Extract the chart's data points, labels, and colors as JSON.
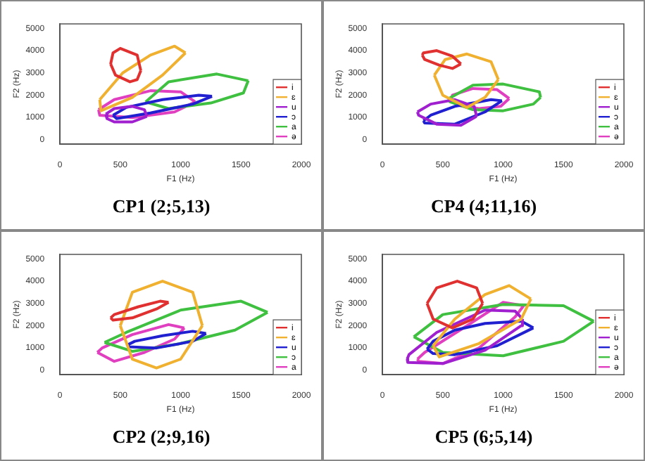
{
  "chart_data": [
    {
      "type": "line",
      "title": "CP1 (2;5,13)",
      "xlabel": "F1 (Hz)",
      "ylabel": "F2 (Hz)",
      "xlim": [
        0,
        2000
      ],
      "ylim": [
        -200,
        5200
      ],
      "xticks": [
        0,
        500,
        1000,
        1500,
        2000
      ],
      "yticks": [
        0,
        1000,
        2000,
        3000,
        4000,
        5000
      ],
      "grid": false,
      "legend": "bottom right",
      "marker": "none",
      "line_style": "solid",
      "series": [
        {
          "name": "i",
          "color": "#e03030",
          "x": [
            420,
            440,
            500,
            640,
            670
          ],
          "values": [
            3400,
            3900,
            4100,
            3800,
            3100
          ]
        },
        {
          "color": "#e03030",
          "x": [
            420,
            460,
            580,
            640,
            670
          ],
          "values": [
            3400,
            2900,
            2600,
            2700,
            3100
          ]
        },
        {
          "name": "ɛ",
          "color": "#f0b030",
          "x": [
            330,
            520,
            750,
            950,
            1040
          ],
          "values": [
            1800,
            3000,
            3800,
            4200,
            3900
          ]
        },
        {
          "color": "#f0b030",
          "x": [
            330,
            340,
            600,
            850,
            1040
          ],
          "values": [
            1800,
            1300,
            1900,
            2900,
            3900
          ]
        },
        {
          "name": "u",
          "color": "#a020d0",
          "x": [
            380,
            450,
            600,
            700,
            720
          ],
          "values": [
            1150,
            1400,
            1500,
            1350,
            1050
          ]
        },
        {
          "color": "#a020d0",
          "x": [
            380,
            390,
            450,
            600,
            720
          ],
          "values": [
            1150,
            950,
            800,
            800,
            1050
          ]
        },
        {
          "name": "ɔ",
          "color": "#2020d0",
          "x": [
            440,
            550,
            850,
            1150,
            1260
          ],
          "values": [
            1100,
            1450,
            1800,
            2000,
            1950
          ]
        },
        {
          "color": "#2020d0",
          "x": [
            440,
            470,
            750,
            1100,
            1260
          ],
          "values": [
            1100,
            950,
            1200,
            1600,
            1950
          ]
        },
        {
          "name": "a",
          "color": "#40c040",
          "x": [
            710,
            900,
            1300,
            1560
          ],
          "values": [
            1700,
            2600,
            2950,
            2650
          ]
        },
        {
          "color": "#40c040",
          "x": [
            710,
            900,
            1250,
            1520,
            1560
          ],
          "values": [
            1700,
            1400,
            1650,
            2100,
            2650
          ]
        },
        {
          "name": "ə",
          "color": "#e040c0",
          "x": [
            320,
            450,
            750,
            1000,
            1120
          ],
          "values": [
            1350,
            1800,
            2200,
            2150,
            1700
          ]
        },
        {
          "color": "#e040c0",
          "x": [
            320,
            330,
            600,
            950,
            1120
          ],
          "values": [
            1350,
            1100,
            1000,
            1250,
            1700
          ]
        }
      ]
    },
    {
      "type": "line",
      "title": "CP4 (4;11,16)",
      "xlabel": "F1 (Hz)",
      "ylabel": "F2 (Hz)",
      "xlim": [
        0,
        2000
      ],
      "ylim": [
        -200,
        5200
      ],
      "xticks": [
        0,
        500,
        1000,
        1500,
        2000
      ],
      "yticks": [
        0,
        1000,
        2000,
        3000,
        4000,
        5000
      ],
      "grid": false,
      "legend": "bottom right",
      "marker": "none",
      "line_style": "solid",
      "series": [
        {
          "name": "i",
          "color": "#e03030",
          "x": [
            330,
            340,
            450,
            580,
            650
          ],
          "values": [
            3800,
            3900,
            4000,
            3750,
            3400
          ]
        },
        {
          "color": "#e03030",
          "x": [
            330,
            350,
            470,
            580,
            650
          ],
          "values": [
            3800,
            3600,
            3350,
            3200,
            3400
          ]
        },
        {
          "name": "ɛ",
          "color": "#f0b030",
          "x": [
            430,
            520,
            700,
            900,
            960
          ],
          "values": [
            2900,
            3600,
            3850,
            3500,
            2700
          ]
        },
        {
          "color": "#f0b030",
          "x": [
            430,
            500,
            700,
            850,
            960
          ],
          "values": [
            2900,
            2000,
            1450,
            1900,
            2700
          ]
        },
        {
          "name": "u",
          "color": "#a020d0",
          "x": [
            290,
            400,
            600,
            760,
            780
          ],
          "values": [
            1250,
            1600,
            1800,
            1500,
            1050
          ]
        },
        {
          "color": "#a020d0",
          "x": [
            290,
            300,
            450,
            650,
            780
          ],
          "values": [
            1250,
            1100,
            700,
            650,
            1050
          ]
        },
        {
          "name": "ɔ",
          "color": "#2020d0",
          "x": [
            340,
            400,
            600,
            900,
            990
          ],
          "values": [
            850,
            1100,
            1500,
            1800,
            1750
          ]
        },
        {
          "color": "#2020d0",
          "x": [
            340,
            350,
            600,
            850,
            990
          ],
          "values": [
            850,
            750,
            700,
            1250,
            1750
          ]
        },
        {
          "name": "a",
          "color": "#40c040",
          "x": [
            550,
            750,
            1000,
            1300,
            1310
          ],
          "values": [
            1850,
            2450,
            2500,
            2150,
            1900
          ]
        },
        {
          "color": "#40c040",
          "x": [
            550,
            560,
            750,
            1000,
            1250,
            1310
          ],
          "values": [
            1850,
            1700,
            1350,
            1300,
            1600,
            1900
          ]
        },
        {
          "name": "ə",
          "color": "#e040c0",
          "x": [
            570,
            580,
            750,
            950,
            1050
          ],
          "values": [
            1800,
            2000,
            2300,
            2250,
            1850
          ]
        },
        {
          "color": "#e040c0",
          "x": [
            570,
            620,
            800,
            980,
            1050
          ],
          "values": [
            1800,
            1550,
            1400,
            1500,
            1850
          ]
        }
      ]
    },
    {
      "type": "line",
      "title": "CP2 (2;9,16)",
      "xlabel": "F1 (Hz)",
      "ylabel": "F2 (Hz)",
      "xlim": [
        0,
        2000
      ],
      "ylim": [
        -200,
        5200
      ],
      "xticks": [
        0,
        500,
        1000,
        1500,
        2000
      ],
      "yticks": [
        0,
        1000,
        2000,
        3000,
        4000,
        5000
      ],
      "grid": false,
      "legend": "bottom right",
      "marker": "none",
      "line_style": "solid",
      "series": [
        {
          "name": "i",
          "color": "#e03030",
          "x": [
            420,
            450,
            650,
            830,
            900
          ],
          "values": [
            2350,
            2500,
            2850,
            3100,
            3050
          ]
        },
        {
          "color": "#e03030",
          "x": [
            420,
            440,
            600,
            800,
            900
          ],
          "values": [
            2350,
            2250,
            2350,
            2750,
            3050
          ]
        },
        {
          "name": "ɛ",
          "color": "#f0b030",
          "x": [
            500,
            600,
            850,
            1100,
            1180
          ],
          "values": [
            2000,
            3500,
            4000,
            3500,
            2000
          ]
        },
        {
          "color": "#f0b030",
          "x": [
            500,
            600,
            800,
            1000,
            1180
          ],
          "values": [
            2000,
            500,
            100,
            500,
            2000
          ]
        },
        {
          "name": "u",
          "color": "#2020d0",
          "x": [
            565,
            620,
            850,
            1100,
            1210
          ],
          "values": [
            1150,
            1300,
            1550,
            1750,
            1650
          ]
        },
        {
          "color": "#2020d0",
          "x": [
            565,
            570,
            800,
            1100,
            1210
          ],
          "values": [
            1150,
            1050,
            1000,
            1300,
            1650
          ]
        },
        {
          "name": "ɔ",
          "color": "#40c040",
          "x": [
            370,
            550,
            1000,
            1500,
            1720
          ],
          "values": [
            1250,
            1700,
            2700,
            3100,
            2600
          ]
        },
        {
          "color": "#40c040",
          "x": [
            370,
            600,
            1000,
            1450,
            1720
          ],
          "values": [
            1250,
            850,
            1200,
            1800,
            2600
          ]
        },
        {
          "name": "a",
          "color": "#e040c0",
          "x": [
            310,
            350,
            600,
            900,
            1030
          ],
          "values": [
            800,
            1000,
            1600,
            2050,
            1900
          ]
        },
        {
          "color": "#e040c0",
          "x": [
            310,
            450,
            700,
            950,
            1030
          ],
          "values": [
            800,
            400,
            800,
            1400,
            1900
          ]
        }
      ]
    },
    {
      "type": "line",
      "title": "CP5 (6;5,14)",
      "xlabel": "F1 (Hz)",
      "ylabel": "F2 (Hz)",
      "xlim": [
        0,
        2000
      ],
      "ylim": [
        -200,
        5200
      ],
      "xticks": [
        0,
        500,
        1000,
        1500,
        2000
      ],
      "yticks": [
        0,
        1000,
        2000,
        3000,
        4000,
        5000
      ],
      "grid": false,
      "legend": "bottom right",
      "marker": "none",
      "line_style": "solid",
      "series": [
        {
          "name": "i",
          "color": "#e03030",
          "x": [
            370,
            450,
            620,
            780,
            830
          ],
          "values": [
            3000,
            3700,
            4000,
            3700,
            3000
          ]
        },
        {
          "color": "#e03030",
          "x": [
            370,
            420,
            580,
            750,
            830
          ],
          "values": [
            3000,
            2300,
            1900,
            2300,
            3000
          ]
        },
        {
          "name": "ɛ",
          "color": "#f0b030",
          "x": [
            420,
            600,
            850,
            1050,
            1230
          ],
          "values": [
            1100,
            2300,
            3400,
            3800,
            3200
          ]
        },
        {
          "color": "#f0b030",
          "x": [
            420,
            470,
            800,
            1150,
            1230
          ],
          "values": [
            1100,
            600,
            1200,
            2300,
            3200
          ]
        },
        {
          "name": "u",
          "color": "#a020d0",
          "x": [
            205,
            220,
            450,
            850,
            1100,
            1160
          ],
          "values": [
            500,
            700,
            1700,
            2700,
            2650,
            2300
          ]
        },
        {
          "color": "#a020d0",
          "x": [
            205,
            210,
            500,
            850,
            1150,
            1160
          ],
          "values": [
            500,
            350,
            300,
            900,
            2000,
            2300
          ]
        },
        {
          "name": "ɔ",
          "color": "#2020d0",
          "x": [
            370,
            420,
            600,
            850,
            1150,
            1250
          ],
          "values": [
            950,
            1300,
            1800,
            2100,
            2200,
            1900
          ]
        },
        {
          "color": "#2020d0",
          "x": [
            370,
            420,
            600,
            950,
            1250
          ],
          "values": [
            950,
            750,
            700,
            1100,
            1900
          ]
        },
        {
          "name": "a",
          "color": "#40c040",
          "x": [
            260,
            500,
            1000,
            1500,
            1750
          ],
          "values": [
            1500,
            2500,
            2950,
            2900,
            2200
          ]
        },
        {
          "color": "#40c040",
          "x": [
            260,
            500,
            1000,
            1500,
            1750
          ],
          "values": [
            1500,
            800,
            650,
            1300,
            2200
          ]
        },
        {
          "name": "ə",
          "color": "#e040c0",
          "x": [
            290,
            350,
            700,
            1000,
            1170
          ],
          "values": [
            500,
            800,
            2000,
            3050,
            2900
          ]
        },
        {
          "color": "#e040c0",
          "x": [
            290,
            300,
            500,
            800,
            1100,
            1170
          ],
          "values": [
            500,
            400,
            300,
            1000,
            2400,
            2900
          ]
        }
      ]
    }
  ]
}
